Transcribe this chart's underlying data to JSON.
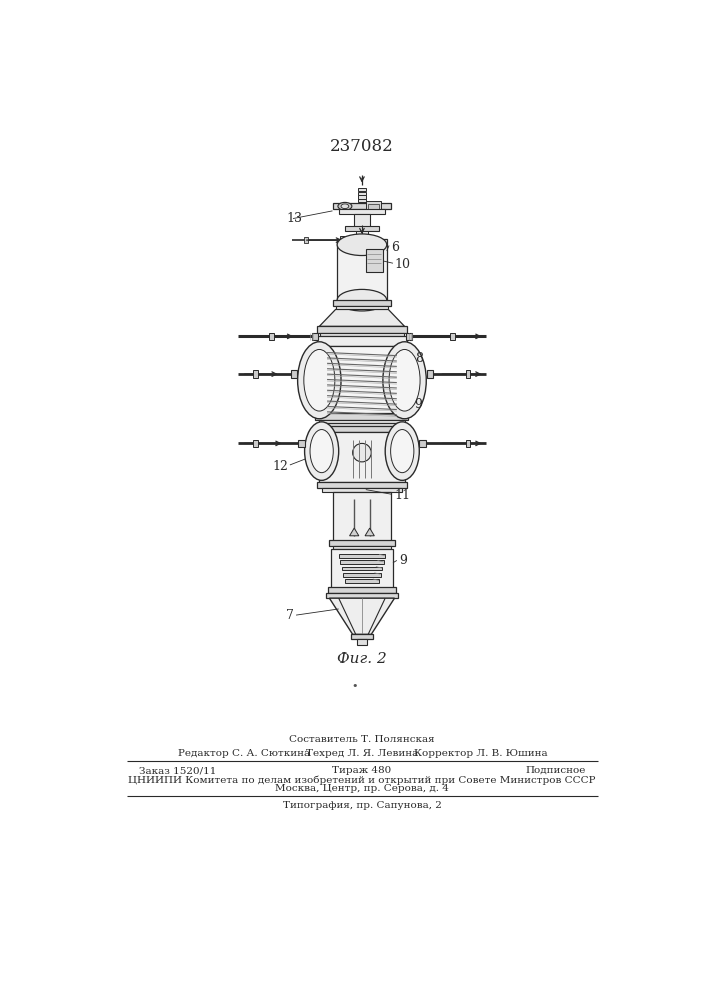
{
  "patent_number": "237082",
  "fig_label": "Фиг. 2",
  "bg_color": "#ffffff",
  "line_color": "#2a2a2a",
  "footer": {
    "compiler": "Составитель Т. Полянская",
    "editor": "Редактор С. А. Сюткина",
    "tech_editor": "Техред Л. Я. Левина",
    "corrector": "Корректор Л. В. Юшина",
    "order": "Заказ 1520/11",
    "circulation": "Тираж 480",
    "subscription": "Подписное",
    "org_line1": "ЦНИИПИ Комитета по делам изобретений и открытий при Совете Министров СССР",
    "org_line2": "Москва, Центр, пр. Серова, д. 4",
    "print_line": "Типография, пр. Сапунова, 2"
  }
}
